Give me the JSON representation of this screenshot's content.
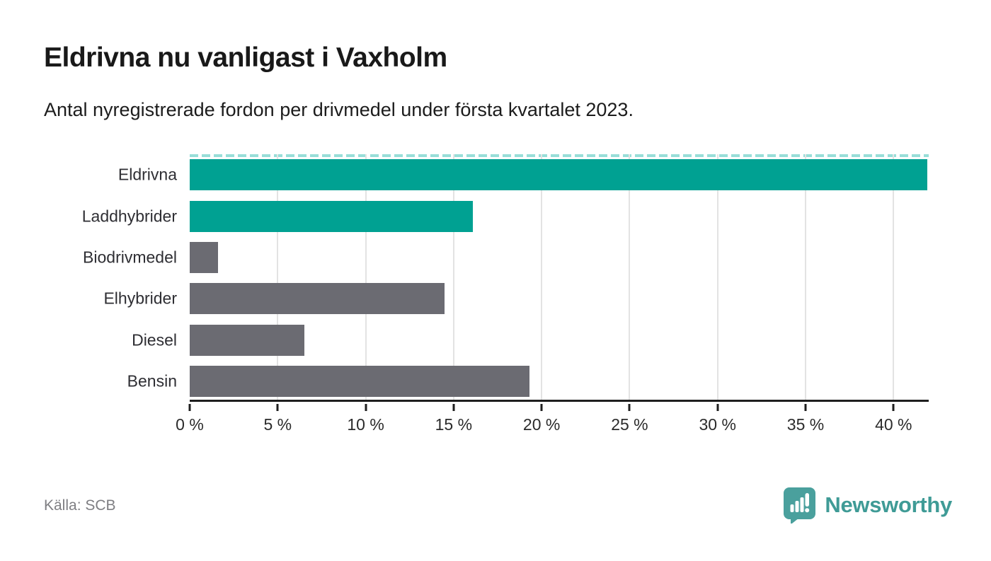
{
  "header": {
    "title": "Eldrivna nu vanligast i Vaxholm",
    "subtitle": "Antal nyregistrerade fordon per drivmedel under första kvartalet 2023."
  },
  "chart_data": {
    "type": "bar",
    "orientation": "horizontal",
    "title": "Eldrivna nu vanligast i Vaxholm",
    "subtitle": "Antal nyregistrerade fordon per drivmedel under första kvartalet 2023.",
    "categories": [
      "Eldrivna",
      "Laddhybrider",
      "Biodrivmedel",
      "Elhybrider",
      "Diesel",
      "Bensin"
    ],
    "values": [
      41.9,
      16.1,
      1.6,
      14.5,
      6.5,
      19.3
    ],
    "unit": "%",
    "bar_colors": [
      "#00a192",
      "#00a192",
      "#6b6b72",
      "#6b6b72",
      "#6b6b72",
      "#6b6b72"
    ],
    "xlim": [
      0,
      42
    ],
    "xticks": [
      0,
      5,
      10,
      15,
      20,
      25,
      30,
      35,
      40
    ],
    "xtick_labels": [
      "0 %",
      "5 %",
      "10 %",
      "15 %",
      "20 %",
      "25 %",
      "30 %",
      "35 %",
      "40 %"
    ],
    "grid": true,
    "top_cut_indicator": true,
    "legend": "none"
  },
  "colors": {
    "highlight_teal": "#00a192",
    "neutral_gray": "#6b6b72",
    "gridline": "#e3e3e3",
    "cut_dash": "#98ded8",
    "axis": "#1f1f1f",
    "brand_teal": "#3f9b96",
    "logo_fill": "#4aa09d"
  },
  "footer": {
    "source": "Källa: SCB",
    "brand": "Newsworthy"
  }
}
